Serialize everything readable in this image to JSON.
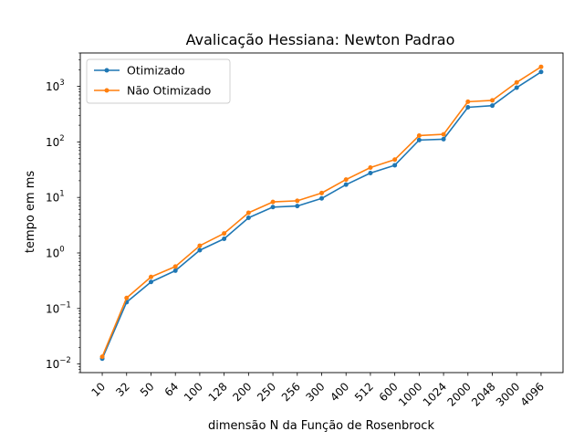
{
  "chart_data": {
    "type": "line",
    "title": "Avalicação Hessiana:  Newton Padrao",
    "xlabel": "dimensão N da Função de Rosenbrock",
    "ylabel": "tempo em ms",
    "yscale": "log",
    "ylim": [
      0.007,
      4000
    ],
    "grid": false,
    "legend_position": "upper left",
    "categories": [
      "10",
      "32",
      "50",
      "64",
      "100",
      "128",
      "200",
      "250",
      "256",
      "300",
      "400",
      "512",
      "600",
      "1000",
      "1024",
      "2000",
      "2048",
      "3000",
      "4096"
    ],
    "y_ticks": [
      {
        "value": 0.01,
        "base": "10",
        "exp": "−2"
      },
      {
        "value": 0.1,
        "base": "10",
        "exp": "−1"
      },
      {
        "value": 1,
        "base": "10",
        "exp": "0"
      },
      {
        "value": 10,
        "base": "10",
        "exp": "1"
      },
      {
        "value": 100,
        "base": "10",
        "exp": "2"
      },
      {
        "value": 1000,
        "base": "10",
        "exp": "3"
      }
    ],
    "series": [
      {
        "name": "Otimizado",
        "color": "#1f77b4",
        "values": [
          0.0125,
          0.13,
          0.3,
          0.48,
          1.12,
          1.8,
          4.3,
          6.7,
          7.0,
          9.6,
          17.0,
          27.5,
          38,
          108,
          112,
          420,
          450,
          950,
          1820
        ]
      },
      {
        "name": " Não Otimizado",
        "color": "#ff7f0e",
        "values": [
          0.0135,
          0.155,
          0.37,
          0.57,
          1.35,
          2.25,
          5.3,
          8.3,
          8.7,
          12.0,
          21.0,
          34.5,
          48,
          130,
          137,
          530,
          560,
          1180,
          2250
        ]
      }
    ]
  }
}
